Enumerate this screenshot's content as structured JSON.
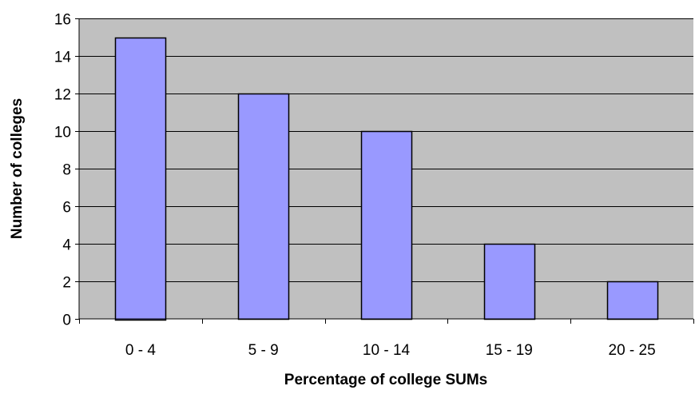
{
  "chart_data": {
    "type": "bar",
    "categories": [
      "0 - 4",
      "5 - 9",
      "10 - 14",
      "15 - 19",
      "20 - 25"
    ],
    "values": [
      15,
      12,
      10,
      4,
      2
    ],
    "title": "",
    "xlabel": "Percentage of college SUMs",
    "ylabel": "Number of colleges",
    "ylim": [
      0,
      16
    ],
    "yticks": [
      0,
      2,
      4,
      6,
      8,
      10,
      12,
      14,
      16
    ],
    "grid": true,
    "legend": "none",
    "colors": {
      "plot_background": "#c0c0c0",
      "bar_fill": "#9999ff",
      "bar_stroke": "#000000",
      "gridline": "#000000"
    }
  }
}
